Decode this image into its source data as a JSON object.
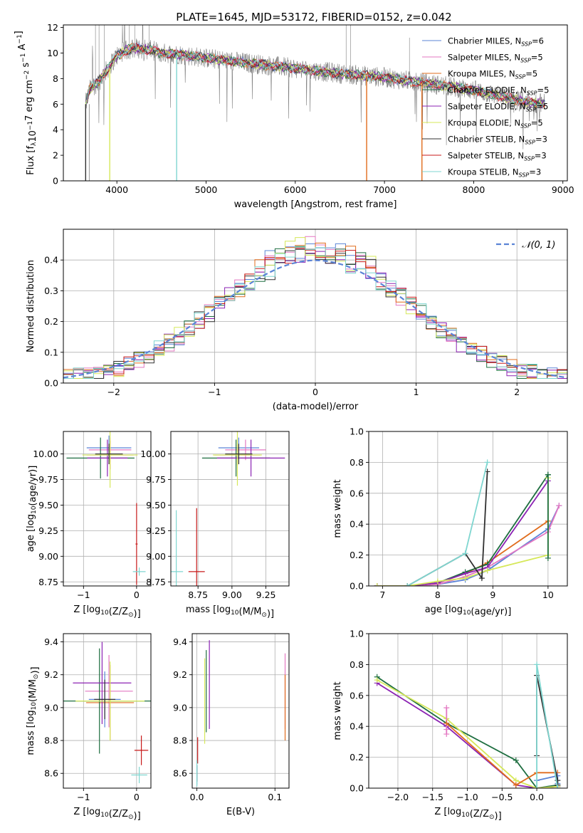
{
  "figure_title": "PLATE=1645, MJD=53172, FIBERID=0152, z=0.042",
  "colors": {
    "chabrier_miles": "#5b84d6",
    "salpeter_miles": "#e377c2",
    "kroupa_miles": "#e06c1c",
    "chabrier_elodie": "#1e6e40",
    "salpeter_elodie": "#8b22b3",
    "kroupa_elodie": "#d6e85a",
    "chabrier_stelib": "#303030",
    "salpeter_stelib": "#c81a1a",
    "kroupa_stelib": "#7fd6d0",
    "spectrum": "#7f7f7f",
    "grid": "#b0b0b0"
  },
  "chart_data": [
    {
      "type": "line",
      "id": "spectrum",
      "title": "PLATE=1645, MJD=53172, FIBERID=0152, z=0.042",
      "xlabel": "wavelength [Angstrom, rest frame]",
      "ylabel": "Flux [f_λ10^-17 erg cm^-2 s^-1 A^-1]",
      "xlim": [
        3400,
        9050
      ],
      "ylim": [
        0,
        12.2
      ],
      "xticks": [
        4000,
        5000,
        6000,
        7000,
        8000,
        9000
      ],
      "yticks": [
        0,
        2,
        4,
        6,
        8,
        10,
        12
      ],
      "grid": false,
      "legend_position": "top-right",
      "legend": [
        {
          "base": "Chabrier MILES, N",
          "sub": "SSP",
          "tail": "=6",
          "color_key": "chabrier_miles"
        },
        {
          "base": "Salpeter MILES, N",
          "sub": "SSP",
          "tail": "=5",
          "color_key": "salpeter_miles"
        },
        {
          "base": "Kroupa MILES, N",
          "sub": "SSP",
          "tail": "=5",
          "color_key": "kroupa_miles"
        },
        {
          "base": "Chabrier ELODIE, N",
          "sub": "SSP",
          "tail": "=5",
          "color_key": "chabrier_elodie"
        },
        {
          "base": "Salpeter ELODIE, N",
          "sub": "SSP",
          "tail": "=5",
          "color_key": "salpeter_elodie"
        },
        {
          "base": "Kroupa ELODIE, N",
          "sub": "SSP",
          "tail": "=5",
          "color_key": "kroupa_elodie"
        },
        {
          "base": "Chabrier STELIB, N",
          "sub": "SSP",
          "tail": "=3",
          "color_key": "chabrier_stelib"
        },
        {
          "base": "Salpeter STELIB, N",
          "sub": "SSP",
          "tail": "=3",
          "color_key": "salpeter_stelib"
        },
        {
          "base": "Kroupa STELIB, N",
          "sub": "SSP",
          "tail": "=3",
          "color_key": "kroupa_stelib"
        }
      ],
      "continuum": {
        "x": [
          3650,
          3700,
          3800,
          3900,
          4000,
          4100,
          4200,
          4300,
          4400,
          4500,
          4700,
          5000,
          5500,
          6000,
          6500,
          7000,
          7500,
          8000,
          8500,
          8800
        ],
        "y": [
          6.0,
          7.2,
          7.8,
          8.8,
          9.8,
          10.2,
          10.4,
          10.3,
          10.2,
          10.0,
          9.9,
          9.6,
          9.2,
          8.8,
          8.4,
          8.1,
          7.6,
          7.1,
          6.3,
          6.0
        ]
      },
      "model_dropouts": [
        {
          "x": 3650,
          "y0": 6.0,
          "color_key": "chabrier_stelib"
        },
        {
          "x": 3920,
          "y0": 8.8,
          "color_key": "kroupa_elodie"
        },
        {
          "x": 4670,
          "y0": 9.9,
          "color_key": "kroupa_stelib"
        },
        {
          "x": 6800,
          "y0": 8.2,
          "color_key": "kroupa_miles"
        },
        {
          "x": 7420,
          "y0": 7.7,
          "color_key": "kroupa_miles"
        }
      ]
    },
    {
      "type": "histogram",
      "id": "residuals",
      "xlabel": "(data-model)/error",
      "ylabel": "Normed distribution",
      "xlim": [
        -2.5,
        2.5
      ],
      "ylim": [
        0,
        0.5
      ],
      "xticks": [
        -2,
        -1,
        0,
        1,
        2
      ],
      "yticks": [
        0.0,
        0.1,
        0.2,
        0.3,
        0.4
      ],
      "grid": true,
      "bin_width": 0.1,
      "legend_position": "top-right",
      "legend": [
        {
          "label": "𝒩(0, 1)",
          "color_key": "chabrier_miles",
          "dashed": true
        }
      ],
      "series_count": 9
    },
    {
      "type": "scatter",
      "id": "age_vs_Z",
      "xlabel": "Z [log10(Z/Z⊙)]",
      "ylabel": "age  [log10(age/yr)]",
      "xlim": [
        -1.38,
        0.27
      ],
      "ylim": [
        8.71,
        10.22
      ],
      "xticks": [
        -1,
        0
      ],
      "yticks": [
        8.75,
        9.0,
        9.25,
        9.5,
        9.75,
        10.0
      ],
      "grid": true,
      "points": [
        {
          "x": -0.52,
          "y": 10.06,
          "ex": 0.42,
          "ey": 0.12,
          "color_key": "chabrier_miles"
        },
        {
          "x": -0.5,
          "y": 10.04,
          "ex": 0.4,
          "ey": 0.12,
          "color_key": "salpeter_miles"
        },
        {
          "x": -0.5,
          "y": 9.99,
          "ex": 0.44,
          "ey": 0.14,
          "color_key": "kroupa_miles"
        },
        {
          "x": -0.68,
          "y": 9.96,
          "ex": 0.64,
          "ey": 0.2,
          "color_key": "chabrier_elodie"
        },
        {
          "x": -0.55,
          "y": 9.96,
          "ex": 0.38,
          "ey": 0.18,
          "color_key": "salpeter_elodie"
        },
        {
          "x": -0.5,
          "y": 9.99,
          "ex": 0.52,
          "ey": 0.32,
          "color_key": "kroupa_elodie"
        },
        {
          "x": -0.52,
          "y": 10.0,
          "ex": 0.26,
          "ey": 0.1,
          "color_key": "chabrier_stelib"
        },
        {
          "x": 0.0,
          "y": 9.12,
          "ex": 0.02,
          "ey": 0.4,
          "color_key": "salpeter_stelib"
        },
        {
          "x": 0.05,
          "y": 8.85,
          "ex": 0.12,
          "ey": 0.04,
          "color_key": "kroupa_stelib"
        }
      ]
    },
    {
      "type": "scatter",
      "id": "age_vs_mass",
      "xlabel": "mass [log10(M/M⊙)]",
      "ylabel": "",
      "xlim": [
        8.55,
        9.42
      ],
      "ylim": [
        8.71,
        10.22
      ],
      "xticks": [
        8.75,
        9.0,
        9.25
      ],
      "yticks": [
        8.75,
        9.0,
        9.25,
        9.5,
        9.75,
        10.0
      ],
      "grid": true,
      "points": [
        {
          "x": 9.05,
          "y": 10.06,
          "ex": 0.15,
          "ey": 0.1,
          "color_key": "chabrier_miles"
        },
        {
          "x": 9.1,
          "y": 10.04,
          "ex": 0.15,
          "ey": 0.1,
          "color_key": "salpeter_miles"
        },
        {
          "x": 9.04,
          "y": 9.99,
          "ex": 0.17,
          "ey": 0.1,
          "color_key": "kroupa_miles"
        },
        {
          "x": 9.03,
          "y": 9.96,
          "ex": 0.25,
          "ey": 0.18,
          "color_key": "chabrier_elodie"
        },
        {
          "x": 9.14,
          "y": 9.96,
          "ex": 0.25,
          "ey": 0.18,
          "color_key": "salpeter_elodie"
        },
        {
          "x": 9.04,
          "y": 9.99,
          "ex": 0.18,
          "ey": 0.3,
          "color_key": "kroupa_elodie"
        },
        {
          "x": 9.05,
          "y": 10.0,
          "ex": 0.1,
          "ey": 0.1,
          "color_key": "chabrier_stelib"
        },
        {
          "x": 8.74,
          "y": 8.85,
          "ex": 0.06,
          "ey": 0.62,
          "color_key": "salpeter_stelib"
        },
        {
          "x": 8.59,
          "y": 8.85,
          "ex": 0.05,
          "ey": 0.6,
          "color_key": "kroupa_stelib"
        }
      ]
    },
    {
      "type": "line",
      "id": "massweight_vs_age",
      "xlabel": "age  [log10(age/yr)]",
      "ylabel": "mass weight",
      "xlim": [
        6.75,
        10.35
      ],
      "ylim": [
        0,
        1.0
      ],
      "xticks": [
        7,
        8,
        9,
        10
      ],
      "yticks": [
        0.0,
        0.2,
        0.4,
        0.6,
        0.8,
        1.0
      ],
      "grid": true,
      "series": [
        {
          "color_key": "chabrier_miles",
          "x": [
            6.9,
            7.45,
            8.0,
            8.5,
            8.9,
            10.0,
            10.2
          ],
          "y": [
            0.0,
            0.0,
            0.01,
            0.04,
            0.1,
            0.37,
            0.52
          ]
        },
        {
          "color_key": "salpeter_miles",
          "x": [
            6.9,
            7.45,
            8.0,
            8.5,
            8.9,
            10.0,
            10.2
          ],
          "y": [
            0.0,
            0.0,
            0.01,
            0.06,
            0.12,
            0.35,
            0.52
          ]
        },
        {
          "color_key": "kroupa_miles",
          "x": [
            6.9,
            7.45,
            8.0,
            8.5,
            8.9,
            10.0
          ],
          "y": [
            0.0,
            0.0,
            0.02,
            0.08,
            0.15,
            0.42
          ]
        },
        {
          "color_key": "chabrier_elodie",
          "x": [
            6.9,
            7.45,
            8.0,
            8.5,
            8.9,
            10.0
          ],
          "y": [
            0.0,
            0.0,
            0.02,
            0.09,
            0.14,
            0.72
          ]
        },
        {
          "color_key": "salpeter_elodie",
          "x": [
            6.9,
            7.45,
            8.0,
            8.5,
            8.9,
            10.0
          ],
          "y": [
            0.0,
            0.0,
            0.02,
            0.08,
            0.12,
            0.68
          ]
        },
        {
          "color_key": "kroupa_elodie",
          "x": [
            6.9,
            7.45,
            8.0,
            8.5,
            8.9,
            10.0,
            10.0
          ],
          "y": [
            0.0,
            0.0,
            0.03,
            0.05,
            0.1,
            0.2,
            0.7
          ]
        },
        {
          "color_key": "chabrier_stelib",
          "x": [
            7.45,
            8.5,
            8.8,
            8.9
          ],
          "y": [
            0.0,
            0.21,
            0.05,
            0.74
          ]
        },
        {
          "color_key": "kroupa_stelib",
          "x": [
            7.45,
            8.5,
            8.9
          ],
          "y": [
            0.0,
            0.21,
            0.8
          ]
        },
        {
          "color_key": "chabrier_elodie",
          "x": [
            10.0,
            10.0
          ],
          "y": [
            0.18,
            0.72
          ]
        }
      ]
    },
    {
      "type": "scatter",
      "id": "mass_vs_Z",
      "xlabel": "Z [log10(Z/Z⊙)]",
      "ylabel": "mass [log10(M/M⊙)]",
      "xlim": [
        -1.38,
        0.27
      ],
      "ylim": [
        8.51,
        9.45
      ],
      "xticks": [
        -1,
        0
      ],
      "yticks": [
        8.6,
        8.8,
        9.0,
        9.2,
        9.4
      ],
      "grid": true,
      "points": [
        {
          "x": -0.6,
          "y": 9.05,
          "ex": 0.3,
          "ey": 0.17,
          "color_key": "chabrier_miles"
        },
        {
          "x": -0.52,
          "y": 9.1,
          "ex": 0.45,
          "ey": 0.22,
          "color_key": "salpeter_miles"
        },
        {
          "x": -0.5,
          "y": 9.03,
          "ex": 0.45,
          "ey": 0.23,
          "color_key": "kroupa_miles"
        },
        {
          "x": -0.7,
          "y": 9.04,
          "ex": 1.3,
          "ey": 0.32,
          "color_key": "chabrier_elodie"
        },
        {
          "x": -0.65,
          "y": 9.15,
          "ex": 0.55,
          "ey": 0.25,
          "color_key": "salpeter_elodie"
        },
        {
          "x": -0.5,
          "y": 9.04,
          "ex": 0.65,
          "ey": 0.24,
          "color_key": "kroupa_elodie"
        },
        {
          "x": -0.6,
          "y": 9.05,
          "ex": 0.2,
          "ey": 0.12,
          "color_key": "chabrier_stelib"
        },
        {
          "x": 0.09,
          "y": 8.74,
          "ex": 0.13,
          "ey": 0.09,
          "color_key": "salpeter_stelib"
        },
        {
          "x": 0.05,
          "y": 8.59,
          "ex": 0.15,
          "ey": 0.05,
          "color_key": "kroupa_stelib"
        }
      ]
    },
    {
      "type": "scatter",
      "id": "mass_vs_EBV",
      "xlabel": "E(B-V)",
      "ylabel": "",
      "xlim": [
        -0.006,
        0.118
      ],
      "ylim": [
        8.51,
        9.45
      ],
      "xticks": [
        0.0,
        0.1
      ],
      "yticks": [
        8.6,
        8.8,
        9.0,
        9.2,
        9.4
      ],
      "grid": true,
      "points": [
        {
          "x": 0.0,
          "y": 8.59,
          "ey": 0.06,
          "color_key": "chabrier_miles"
        },
        {
          "x": 0.113,
          "y": 9.1,
          "ey": 0.23,
          "color_key": "salpeter_miles"
        },
        {
          "x": 0.113,
          "y": 9.0,
          "ey": 0.2,
          "color_key": "kroupa_miles"
        },
        {
          "x": 0.012,
          "y": 9.1,
          "ey": 0.25,
          "color_key": "chabrier_elodie"
        },
        {
          "x": 0.016,
          "y": 9.14,
          "ey": 0.27,
          "color_key": "salpeter_elodie"
        },
        {
          "x": 0.01,
          "y": 9.04,
          "ey": 0.26,
          "color_key": "kroupa_elodie"
        },
        {
          "x": 0.0,
          "y": 8.6,
          "ey": 0.05,
          "color_key": "chabrier_stelib"
        },
        {
          "x": 0.001,
          "y": 8.74,
          "ey": 0.08,
          "color_key": "salpeter_stelib"
        },
        {
          "x": 0.0,
          "y": 8.6,
          "ey": 0.08,
          "color_key": "kroupa_stelib"
        }
      ]
    },
    {
      "type": "line",
      "id": "massweight_vs_Z",
      "xlabel": "Z [log10(Z/Z⊙)]",
      "ylabel": "mass weight",
      "xlim": [
        -2.42,
        0.44
      ],
      "ylim": [
        0,
        1.0
      ],
      "xticks": [
        -2.0,
        -1.5,
        -1.0,
        -0.5,
        0.0
      ],
      "yticks": [
        0.0,
        0.2,
        0.4,
        0.6,
        0.8,
        1.0
      ],
      "grid": true,
      "series": [
        {
          "color_key": "chabrier_elodie",
          "x": [
            -2.3,
            -1.3,
            -0.3,
            0.0,
            0.3
          ],
          "y": [
            0.72,
            0.42,
            0.18,
            0.0,
            0.02
          ]
        },
        {
          "color_key": "salpeter_elodie",
          "x": [
            -2.3,
            -1.3,
            -0.3,
            0.0,
            0.3
          ],
          "y": [
            0.68,
            0.4,
            0.02,
            0.0,
            0.01
          ]
        },
        {
          "color_key": "kroupa_elodie",
          "x": [
            -2.3,
            -1.3,
            -0.3,
            0.0,
            0.3
          ],
          "y": [
            0.7,
            0.45,
            0.05,
            0.0,
            0.01
          ]
        },
        {
          "color_key": "salpeter_miles",
          "x": [
            -1.3,
            -1.3,
            -1.3
          ],
          "y": [
            0.35,
            0.52,
            0.38
          ]
        },
        {
          "color_key": "kroupa_miles",
          "x": [
            -1.3,
            -0.3,
            0.0,
            0.3
          ],
          "y": [
            0.42,
            0.02,
            0.1,
            0.1
          ]
        },
        {
          "color_key": "chabrier_miles",
          "x": [
            0.0,
            0.3,
            0.3
          ],
          "y": [
            0.05,
            0.08,
            0.03
          ]
        },
        {
          "color_key": "chabrier_stelib",
          "x": [
            0.0,
            0.0,
            0.3,
            0.3
          ],
          "y": [
            0.21,
            0.73,
            0.05,
            0.02
          ]
        },
        {
          "color_key": "kroupa_stelib",
          "x": [
            0.0,
            0.0,
            0.3
          ],
          "y": [
            0.0,
            0.8,
            0.0
          ]
        }
      ]
    }
  ]
}
